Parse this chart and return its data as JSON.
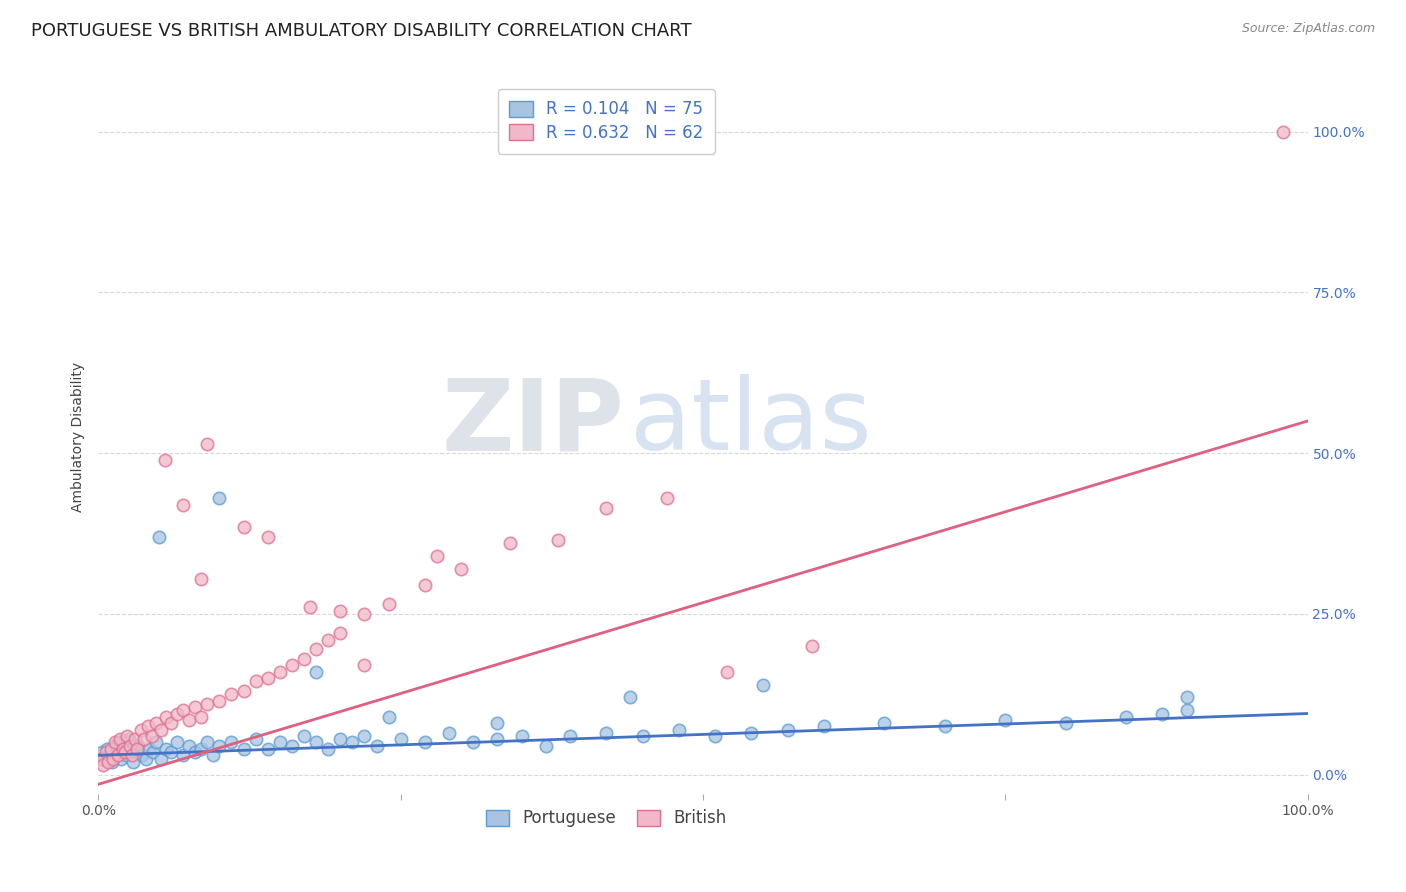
{
  "title": "PORTUGUESE VS BRITISH AMBULATORY DISABILITY CORRELATION CHART",
  "source": "Source: ZipAtlas.com",
  "ylabel": "Ambulatory Disability",
  "xlim": [
    0,
    100
  ],
  "ylim": [
    -3,
    108
  ],
  "y_ticks_right": [
    0,
    25,
    50,
    75,
    100
  ],
  "y_tick_labels_right": [
    "0.0%",
    "25.0%",
    "50.0%",
    "75.0%",
    "100.0%"
  ],
  "x_ticks": [
    0,
    25,
    50,
    75,
    100
  ],
  "x_tick_labels": [
    "0.0%",
    "",
    "",
    "",
    "100.0%"
  ],
  "blue_color": "#a8c4e0",
  "blue_edge_color": "#5b9bd5",
  "pink_color": "#f0b8c8",
  "pink_edge_color": "#e07090",
  "blue_line_color": "#4472c4",
  "pink_line_color": "#e06080",
  "blue_label": "Portuguese",
  "pink_label": "British",
  "blue_R": 0.104,
  "blue_N": 75,
  "pink_R": 0.632,
  "pink_N": 62,
  "blue_reg_x0": 0,
  "blue_reg_y0": 3.0,
  "blue_reg_x1": 100,
  "blue_reg_y1": 9.5,
  "pink_reg_x0": 0,
  "pink_reg_y0": -1.5,
  "pink_reg_x1": 100,
  "pink_reg_y1": 55.0,
  "blue_x": [
    0.3,
    0.5,
    0.7,
    0.9,
    1.1,
    1.3,
    1.5,
    1.7,
    1.9,
    2.1,
    2.3,
    2.5,
    2.7,
    2.9,
    3.1,
    3.3,
    3.6,
    3.9,
    4.2,
    4.5,
    4.8,
    5.2,
    5.6,
    6.0,
    6.5,
    7.0,
    7.5,
    8.0,
    8.5,
    9.0,
    9.5,
    10.0,
    11.0,
    12.0,
    13.0,
    14.0,
    15.0,
    16.0,
    17.0,
    18.0,
    19.0,
    20.0,
    21.0,
    22.0,
    23.0,
    25.0,
    27.0,
    29.0,
    31.0,
    33.0,
    35.0,
    37.0,
    39.0,
    42.0,
    45.0,
    48.0,
    51.0,
    54.0,
    57.0,
    60.0,
    65.0,
    70.0,
    75.0,
    80.0,
    85.0,
    88.0,
    90.0,
    5.0,
    10.0,
    18.0,
    24.0,
    33.0,
    44.0,
    55.0,
    90.0
  ],
  "blue_y": [
    3.5,
    2.5,
    4.0,
    3.0,
    2.0,
    4.5,
    3.5,
    5.0,
    2.5,
    4.0,
    3.0,
    5.5,
    4.0,
    2.0,
    3.5,
    4.5,
    3.0,
    2.5,
    4.0,
    3.5,
    5.0,
    2.5,
    4.0,
    3.5,
    5.0,
    3.0,
    4.5,
    3.5,
    4.0,
    5.0,
    3.0,
    4.5,
    5.0,
    4.0,
    5.5,
    4.0,
    5.0,
    4.5,
    6.0,
    5.0,
    4.0,
    5.5,
    5.0,
    6.0,
    4.5,
    5.5,
    5.0,
    6.5,
    5.0,
    5.5,
    6.0,
    4.5,
    6.0,
    6.5,
    6.0,
    7.0,
    6.0,
    6.5,
    7.0,
    7.5,
    8.0,
    7.5,
    8.5,
    8.0,
    9.0,
    9.5,
    10.0,
    37.0,
    43.0,
    16.0,
    9.0,
    8.0,
    12.0,
    14.0,
    12.0
  ],
  "pink_x": [
    0.2,
    0.4,
    0.6,
    0.8,
    1.0,
    1.2,
    1.4,
    1.6,
    1.8,
    2.0,
    2.2,
    2.4,
    2.6,
    2.8,
    3.0,
    3.2,
    3.5,
    3.8,
    4.1,
    4.4,
    4.8,
    5.2,
    5.6,
    6.0,
    6.5,
    7.0,
    7.5,
    8.0,
    8.5,
    9.0,
    10.0,
    11.0,
    12.0,
    13.0,
    14.0,
    15.0,
    16.0,
    17.0,
    18.0,
    19.0,
    20.0,
    22.0,
    24.0,
    27.0,
    30.0,
    34.0,
    38.0,
    42.0,
    47.0,
    52.0,
    59.0,
    98.0,
    5.5,
    9.0,
    14.0,
    20.0,
    28.0,
    7.0,
    12.0,
    17.5,
    8.5,
    22.0
  ],
  "pink_y": [
    2.5,
    1.5,
    3.5,
    2.0,
    4.0,
    2.5,
    5.0,
    3.0,
    5.5,
    4.0,
    3.5,
    6.0,
    4.5,
    3.0,
    5.5,
    4.0,
    7.0,
    5.5,
    7.5,
    6.0,
    8.0,
    7.0,
    9.0,
    8.0,
    9.5,
    10.0,
    8.5,
    10.5,
    9.0,
    11.0,
    11.5,
    12.5,
    13.0,
    14.5,
    15.0,
    16.0,
    17.0,
    18.0,
    19.5,
    21.0,
    22.0,
    25.0,
    26.5,
    29.5,
    32.0,
    36.0,
    36.5,
    41.5,
    43.0,
    16.0,
    20.0,
    100.0,
    49.0,
    51.5,
    37.0,
    25.5,
    34.0,
    42.0,
    38.5,
    26.0,
    30.5,
    17.0
  ],
  "watermark_zip": "ZIP",
  "watermark_atlas": "atlas",
  "background_color": "#ffffff",
  "grid_color": "#d8d8d8",
  "title_fontsize": 13,
  "axis_label_fontsize": 10,
  "tick_fontsize": 10,
  "legend_fontsize": 12,
  "right_tick_color": "#4472c4",
  "legend_text_color": "#4472c4"
}
